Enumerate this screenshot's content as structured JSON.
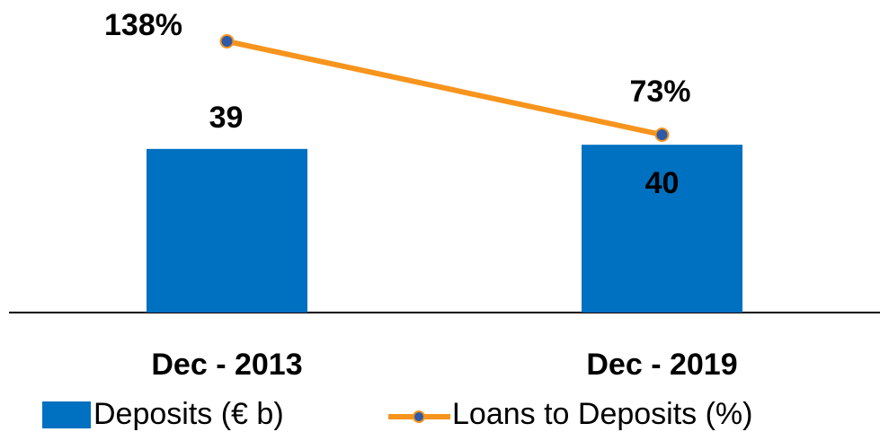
{
  "chart_data": {
    "type": "bar_line",
    "categories": [
      "Dec - 2013",
      "Dec - 2019"
    ],
    "series": [
      {
        "name": "Deposits (€ b)",
        "type": "bar",
        "color": "#0070c0",
        "values": [
          39,
          40
        ]
      },
      {
        "name": "Loans to Deposits (%)",
        "type": "line",
        "axis": "y2",
        "color": "#f7941d",
        "marker_color": "#2e5aa8",
        "values": [
          138,
          73
        ],
        "value_labels": [
          "138%",
          "73%"
        ]
      }
    ],
    "ylim": [
      0,
      74.5
    ],
    "y2lim": [
      -50.75,
      166.75
    ],
    "legend": "bottom"
  }
}
